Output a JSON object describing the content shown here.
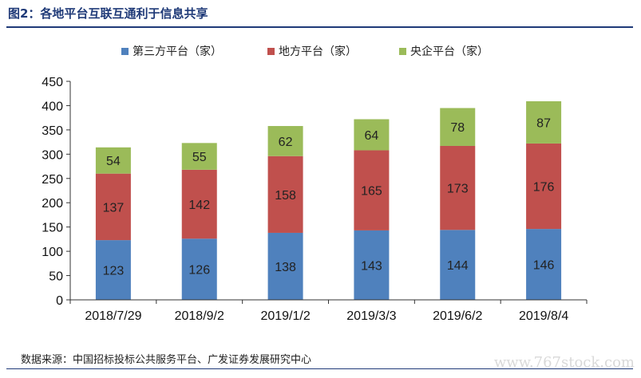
{
  "figure": {
    "title": "图2：各地平台互联互通利于信息共享",
    "source": "数据来源：中国招标投标公共服务平台、广发证券发展研究中心",
    "watermark": "www.767stock.com"
  },
  "chart_data": {
    "type": "bar",
    "stacked": true,
    "categories": [
      "2018/7/29",
      "2018/9/2",
      "2019/1/2",
      "2019/3/3",
      "2019/6/2",
      "2019/8/4"
    ],
    "series": [
      {
        "name": "第三方平台（家）",
        "color": "#4f81bd",
        "values": [
          123,
          126,
          138,
          143,
          144,
          146
        ]
      },
      {
        "name": "地方平台（家）",
        "color": "#c0504d",
        "values": [
          137,
          142,
          158,
          165,
          173,
          176
        ]
      },
      {
        "name": "央企平台（家）",
        "color": "#9bbb59",
        "values": [
          54,
          55,
          62,
          64,
          78,
          87
        ]
      }
    ],
    "ylim": [
      0,
      450
    ],
    "yticks": [
      0,
      50,
      100,
      150,
      200,
      250,
      300,
      350,
      400,
      450
    ],
    "legend_position": "top-center",
    "grid": false
  }
}
